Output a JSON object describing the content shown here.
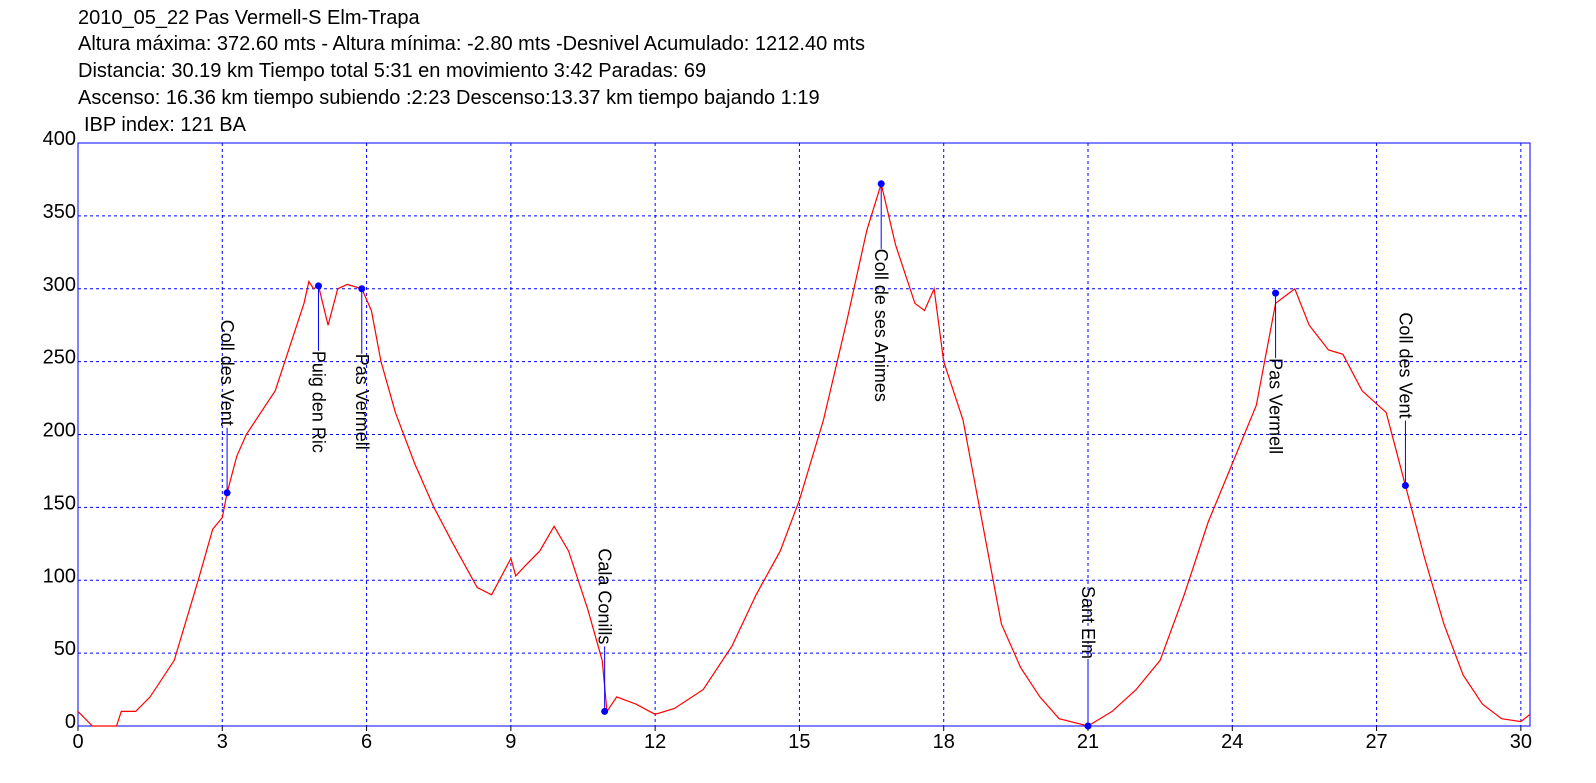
{
  "chart_data": {
    "type": "line",
    "title": "2010_05_22 Pas Vermell-S Elm-Trapa",
    "subtitle": [
      "Altura máxima: 372.60 mts - Altura mínima: -2.80 mts -Desnivel Acumulado: 1212.40 mts",
      "Distancia: 30.19 km  Tiempo total 5:31  en movimiento 3:42 Paradas: 69",
      "Ascenso: 16.36 km  tiempo subiendo :2:23  Descenso:13.37 km tiempo bajando 1:19",
      "IBP index: 121 BA"
    ],
    "x": [
      0,
      0.3,
      0.8,
      0.9,
      1.2,
      1.5,
      2,
      2.5,
      2.8,
      3.0,
      3.1,
      3.3,
      3.5,
      3.8,
      4.1,
      4.4,
      4.7,
      4.8,
      4.9,
      5.0,
      5.2,
      5.4,
      5.6,
      5.9,
      6.1,
      6.3,
      6.6,
      7.0,
      7.4,
      7.8,
      8.3,
      8.6,
      9.0,
      9.1,
      9.3,
      9.6,
      9.9,
      10.2,
      10.6,
      10.9,
      11.0,
      11.2,
      11.6,
      12.0,
      12.4,
      13,
      13.6,
      14.1,
      14.6,
      15,
      15.5,
      16,
      16.4,
      16.7,
      17.0,
      17.4,
      17.6,
      17.8,
      18.0,
      18.4,
      18.8,
      19.2,
      19.6,
      20.0,
      20.4,
      21.0,
      21.5,
      22,
      22.5,
      23,
      23.5,
      24,
      24.5,
      24.9,
      25.1,
      25.3,
      25.6,
      26,
      26.3,
      26.7,
      27.2,
      27.6,
      28,
      28.4,
      28.8,
      29.2,
      29.6,
      30.0,
      30.19
    ],
    "series": [
      {
        "color": "#ff0000",
        "values": [
          10,
          0,
          0,
          10,
          10,
          20,
          45,
          100,
          135,
          143,
          160,
          185,
          200,
          215,
          230,
          260,
          290,
          305,
          300,
          302,
          275,
          300,
          303,
          300,
          285,
          250,
          215,
          180,
          150,
          125,
          95,
          90,
          115,
          103,
          110,
          120,
          137,
          120,
          80,
          45,
          10,
          20,
          15,
          8,
          12,
          25,
          55,
          90,
          120,
          155,
          210,
          280,
          340,
          372,
          330,
          290,
          285,
          300,
          250,
          210,
          140,
          70,
          40,
          20,
          5,
          0,
          10,
          25,
          45,
          90,
          140,
          180,
          220,
          290,
          295,
          300,
          275,
          258,
          255,
          230,
          215,
          165,
          115,
          70,
          35,
          15,
          5,
          3,
          8
        ]
      }
    ],
    "waypoints": [
      {
        "name": "Coll des Vent",
        "x": 3.1,
        "y": 160
      },
      {
        "name": "Puig den Ric",
        "x": 5.0,
        "y": 302
      },
      {
        "name": "Pas Vermell",
        "x": 5.9,
        "y": 300
      },
      {
        "name": "Cala Conills",
        "x": 10.95,
        "y": 10
      },
      {
        "name": "Coll de ses Animes",
        "x": 16.7,
        "y": 372
      },
      {
        "name": "Sant Elm",
        "x": 21.0,
        "y": 0
      },
      {
        "name": "Pas Vermell",
        "x": 24.9,
        "y": 297
      },
      {
        "name": "Coll des Vent",
        "x": 27.6,
        "y": 165
      }
    ],
    "waypoint_color": "#0000ff",
    "xlim": [
      0,
      30.19
    ],
    "xticks": [
      0,
      3,
      6,
      9,
      12,
      15,
      18,
      21,
      24,
      27,
      30
    ],
    "ylim": [
      0,
      400
    ],
    "yticks": [
      0,
      50,
      100,
      150,
      200,
      250,
      300,
      350,
      400
    ],
    "grid": true
  }
}
